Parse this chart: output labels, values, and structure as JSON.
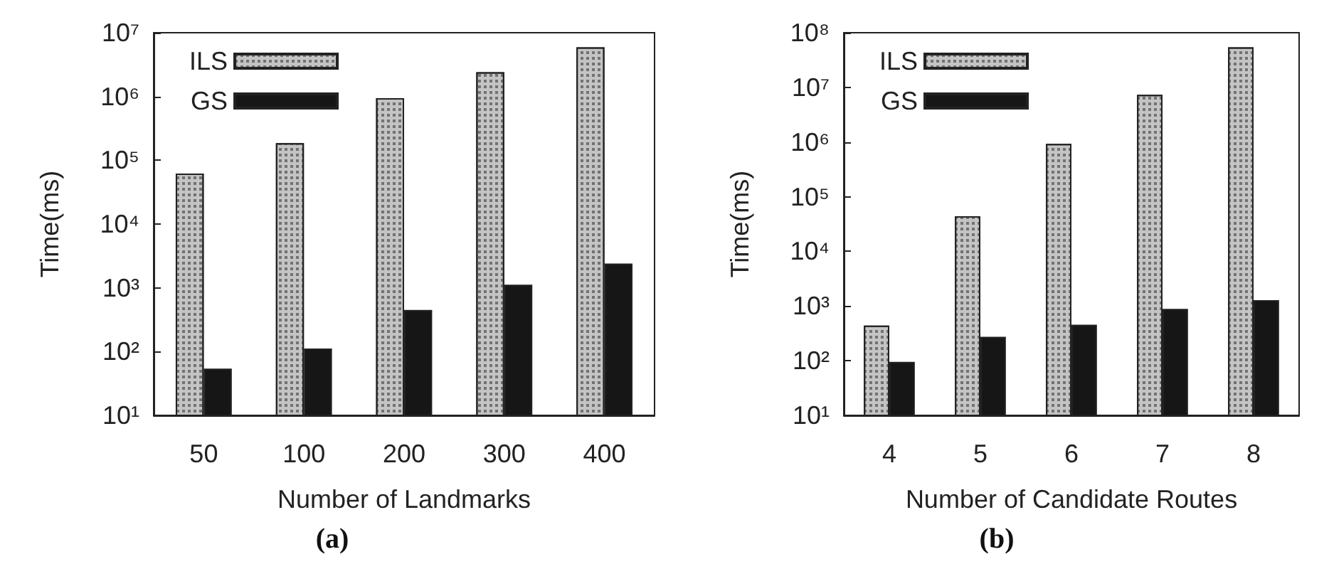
{
  "chart_data": [
    {
      "type": "bar",
      "title": "(a)",
      "xlabel": "Number of Landmarks",
      "ylabel": "Time(ms)",
      "categories": [
        "50",
        "100",
        "200",
        "300",
        "400"
      ],
      "series": [
        {
          "name": "ILS",
          "color": "#c4c4c4",
          "values": [
            62000,
            186000,
            940000,
            2400000,
            5900000
          ]
        },
        {
          "name": "GS",
          "color": "#161616",
          "values": [
            54,
            112,
            450,
            1120,
            2400
          ]
        }
      ],
      "log": "y",
      "ylim": [
        10,
        10000000
      ],
      "yticks": [
        {
          "value": 10,
          "label": "10¹"
        },
        {
          "value": 100,
          "label": "10²"
        },
        {
          "value": 1000,
          "label": "10³"
        },
        {
          "value": 10000,
          "label": "10⁴"
        },
        {
          "value": 100000,
          "label": "10⁵"
        },
        {
          "value": 1000000,
          "label": "10⁶"
        },
        {
          "value": 10000000,
          "label": "10⁷"
        }
      ],
      "grid": false,
      "legend": "top left"
    },
    {
      "type": "bar",
      "title": "(b)",
      "xlabel": "Number of Candidate Routes",
      "ylabel": "Time(ms)",
      "categories": [
        "4",
        "5",
        "6",
        "7",
        "8"
      ],
      "series": [
        {
          "name": "ILS",
          "color": "#c4c4c4",
          "values": [
            440,
            44000,
            930000,
            7300000,
            54000000
          ]
        },
        {
          "name": "GS",
          "color": "#161616",
          "values": [
            95,
            275,
            455,
            890,
            1280
          ]
        }
      ],
      "log": "y",
      "ylim": [
        10,
        100000000
      ],
      "yticks": [
        {
          "value": 10,
          "label": "10¹"
        },
        {
          "value": 100,
          "label": "10²"
        },
        {
          "value": 1000,
          "label": "10³"
        },
        {
          "value": 10000,
          "label": "10⁴"
        },
        {
          "value": 100000,
          "label": "10⁵"
        },
        {
          "value": 1000000,
          "label": "10⁶"
        },
        {
          "value": 10000000,
          "label": "10⁷"
        },
        {
          "value": 100000000,
          "label": "10⁸"
        }
      ],
      "grid": false,
      "legend": "top left"
    }
  ]
}
